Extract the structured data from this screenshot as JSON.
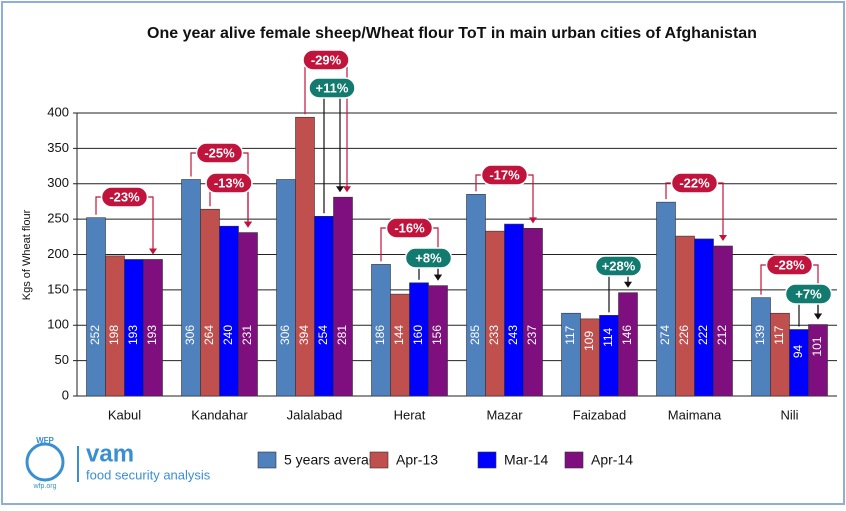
{
  "chart_data": {
    "type": "bar",
    "title": "One year alive female sheep/Wheat flour ToT in main urban cities of Afghanistan",
    "y_label": "Kgs of Wheat flour",
    "categories": [
      "Kabul",
      "Kandahar",
      "Jalalabad",
      "Herat",
      "Mazar",
      "Faizabad",
      "Maimana",
      "Nili"
    ],
    "series": [
      {
        "name": "5 years average",
        "color": "#4f81bd",
        "values": [
          252,
          306,
          306,
          186,
          285,
          117,
          274,
          139
        ]
      },
      {
        "name": "Apr-13",
        "color": "#c0504d",
        "values": [
          198,
          264,
          394,
          144,
          233,
          109,
          226,
          117
        ]
      },
      {
        "name": "Mar-14",
        "color": "#0000ff",
        "values": [
          193,
          240,
          254,
          160,
          243,
          114,
          222,
          94
        ]
      },
      {
        "name": "Apr-14",
        "color": "#7f0f7e",
        "values": [
          193,
          231,
          281,
          156,
          237,
          146,
          212,
          101
        ]
      }
    ],
    "ylim": [
      0,
      400
    ],
    "yticks": [
      0,
      50,
      100,
      150,
      200,
      250,
      300,
      350,
      400
    ],
    "grid": true,
    "annotations": [
      "-23%",
      "-25%",
      "-13%",
      "-29%",
      "+11%",
      "-16%",
      "+8%",
      "-17%",
      "+28%",
      "-22%",
      "-28%",
      "+7%"
    ],
    "logo": {
      "org": "WFP",
      "name": "vam",
      "tagline": "food security analysis",
      "url": "wfp.org"
    }
  }
}
